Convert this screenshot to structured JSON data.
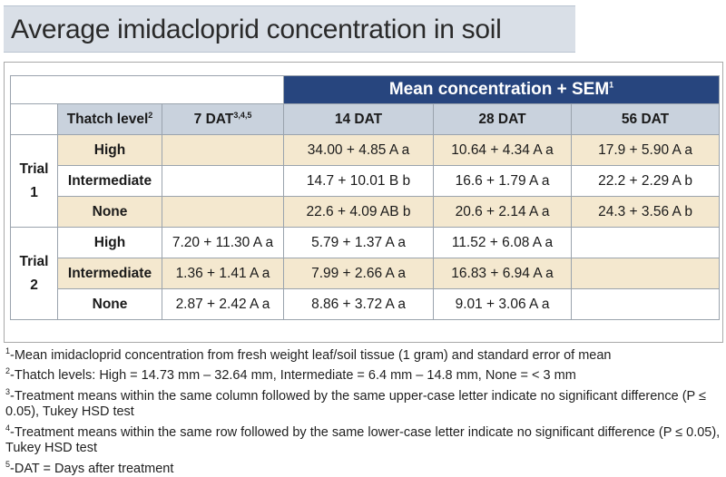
{
  "title": "Average imidacloprid concentration in soil",
  "table": {
    "group_header": "Mean concentration + SEM",
    "group_header_sup": "1",
    "thatch_header": "Thatch level",
    "thatch_header_sup": "2",
    "columns": [
      {
        "label": "7 DAT",
        "sup": "3,4,5"
      },
      {
        "label": "14 DAT",
        "sup": ""
      },
      {
        "label": "28 DAT",
        "sup": ""
      },
      {
        "label": "56 DAT",
        "sup": ""
      }
    ],
    "trials": [
      {
        "label_line1": "Trial",
        "label_line2": "1",
        "rows": [
          {
            "thatch": "High",
            "values": [
              "",
              "34.00 + 4.85 A a",
              "10.64 + 4.34 A a",
              "17.9 + 5.90 A a"
            ]
          },
          {
            "thatch": "Intermediate",
            "values": [
              "",
              "14.7 + 10.01 B b",
              "16.6 + 1.79 A a",
              "22.2 + 2.29 A b"
            ]
          },
          {
            "thatch": "None",
            "values": [
              "",
              "22.6 + 4.09 AB b",
              "20.6 + 2.14 A a",
              "24.3 + 3.56 A b"
            ]
          }
        ]
      },
      {
        "label_line1": "Trial",
        "label_line2": "2",
        "rows": [
          {
            "thatch": "High",
            "values": [
              "7.20 + 11.30 A a",
              "5.79 + 1.37 A a",
              "11.52 + 6.08 A a",
              ""
            ]
          },
          {
            "thatch": "Intermediate",
            "values": [
              "1.36 + 1.41 A a",
              "7.99 + 2.66 A a",
              "16.83 + 6.94 A a",
              ""
            ]
          },
          {
            "thatch": "None",
            "values": [
              "2.87 + 2.42 A a",
              "8.86 + 3.72 A a",
              "9.01 + 3.06 A a",
              ""
            ]
          }
        ]
      }
    ]
  },
  "footnotes": [
    {
      "sup": "1",
      "text": "-Mean imidacloprid concentration from fresh weight leaf/soil tissue (1 gram) and standard error of mean"
    },
    {
      "sup": "2",
      "text": "-Thatch levels: High = 14.73 mm – 32.64 mm, Intermediate = 6.4 mm – 14.8 mm, None = < 3 mm"
    },
    {
      "sup": "3",
      "text": "-Treatment means within the same column followed by the same upper-case letter indicate no significant difference (P ≤ 0.05), Tukey HSD test"
    },
    {
      "sup": "4",
      "text": "-Treatment means within the same row followed by the same lower-case letter indicate no significant difference (P ≤ 0.05), Tukey HSD test"
    },
    {
      "sup": "5",
      "text": "-DAT = Days after treatment"
    }
  ]
}
